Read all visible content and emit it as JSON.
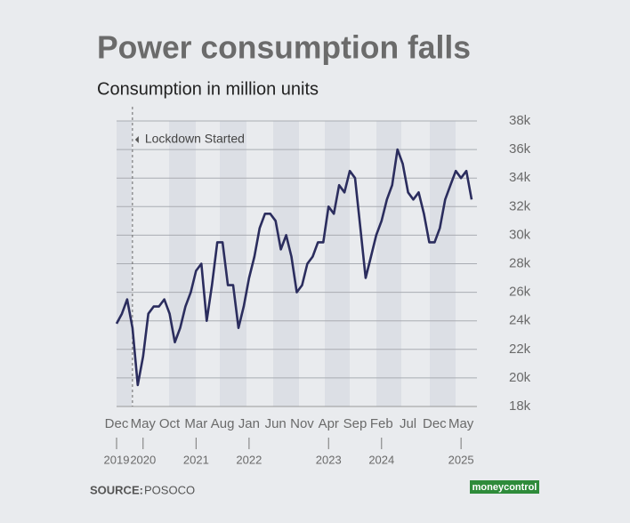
{
  "chart_data": {
    "type": "line",
    "title": "Power consumption falls",
    "subtitle": "Consumption in million units",
    "source_label": "SOURCE:",
    "source": "POSOCO",
    "brand": "moneycontrol",
    "annotation": {
      "x": "2020-03",
      "text": "Lockdown Started"
    },
    "x": [
      "2019-12",
      "2020-01",
      "2020-02",
      "2020-03",
      "2020-04",
      "2020-05",
      "2020-06",
      "2020-07",
      "2020-08",
      "2020-09",
      "2020-10",
      "2020-11",
      "2020-12",
      "2021-01",
      "2021-02",
      "2021-03",
      "2021-04",
      "2021-05",
      "2021-06",
      "2021-07",
      "2021-08",
      "2021-09",
      "2021-10",
      "2021-11",
      "2021-12",
      "2022-01",
      "2022-02",
      "2022-03",
      "2022-04",
      "2022-05",
      "2022-06",
      "2022-07",
      "2022-08",
      "2022-09",
      "2022-10",
      "2022-11",
      "2022-12",
      "2023-01",
      "2023-02",
      "2023-03",
      "2023-04",
      "2023-05",
      "2023-06",
      "2023-07",
      "2023-08",
      "2023-09",
      "2023-10",
      "2023-11",
      "2023-12",
      "2024-01",
      "2024-02",
      "2024-03",
      "2024-04",
      "2024-05",
      "2024-06",
      "2024-07",
      "2024-08",
      "2024-09",
      "2024-10",
      "2024-11",
      "2024-12",
      "2025-01",
      "2025-02",
      "2025-03",
      "2025-04",
      "2025-05",
      "2025-06",
      "2025-07"
    ],
    "series": [
      {
        "name": "Consumption",
        "color": "#2b2d5e",
        "values": [
          23800,
          24500,
          25500,
          23500,
          19500,
          21500,
          24500,
          25000,
          25000,
          25500,
          24500,
          22500,
          23500,
          25000,
          26000,
          27500,
          28000,
          24000,
          26500,
          29500,
          29500,
          26500,
          26500,
          23500,
          25000,
          27000,
          28500,
          30500,
          31500,
          31500,
          31000,
          29000,
          30000,
          28500,
          26000,
          26500,
          28000,
          28500,
          29500,
          29500,
          32000,
          31500,
          33500,
          33000,
          34500,
          34000,
          30500,
          27000,
          28500,
          30000,
          31000,
          32500,
          33500,
          36000,
          35000,
          33000,
          32500,
          33000,
          31500,
          29500,
          29500,
          30500,
          32500,
          33500,
          34500,
          34000,
          34500,
          32500
        ]
      }
    ],
    "xlim": [
      "2019-12",
      "2025-08"
    ],
    "xticks": [
      {
        "value": "2019-12",
        "label": "Dec"
      },
      {
        "value": "2020-05",
        "label": "May"
      },
      {
        "value": "2020-10",
        "label": "Oct"
      },
      {
        "value": "2021-03",
        "label": "Mar"
      },
      {
        "value": "2021-08",
        "label": "Aug"
      },
      {
        "value": "2022-01",
        "label": "Jan"
      },
      {
        "value": "2022-06",
        "label": "Jun"
      },
      {
        "value": "2022-11",
        "label": "Nov"
      },
      {
        "value": "2023-04",
        "label": "Apr"
      },
      {
        "value": "2023-09",
        "label": "Sep"
      },
      {
        "value": "2024-02",
        "label": "Feb"
      },
      {
        "value": "2024-07",
        "label": "Jul"
      },
      {
        "value": "2024-12",
        "label": "Dec"
      },
      {
        "value": "2025-05",
        "label": "May"
      }
    ],
    "year_ticks": [
      {
        "value": "2019-12",
        "label": "2019"
      },
      {
        "value": "2020-05",
        "label": "2020"
      },
      {
        "value": "2021-03",
        "label": "2021"
      },
      {
        "value": "2022-01",
        "label": "2022"
      },
      {
        "value": "2023-04",
        "label": "2023"
      },
      {
        "value": "2024-02",
        "label": "2024"
      },
      {
        "value": "2025-05",
        "label": "2025"
      }
    ],
    "ylim": [
      18000,
      38000
    ],
    "yticks": [
      {
        "value": 18000,
        "label": "18k"
      },
      {
        "value": 20000,
        "label": "20k"
      },
      {
        "value": 22000,
        "label": "22k"
      },
      {
        "value": 24000,
        "label": "24k"
      },
      {
        "value": 26000,
        "label": "26k"
      },
      {
        "value": 28000,
        "label": "28k"
      },
      {
        "value": 30000,
        "label": "30k"
      },
      {
        "value": 32000,
        "label": "32k"
      },
      {
        "value": 34000,
        "label": "34k"
      },
      {
        "value": 36000,
        "label": "36k"
      },
      {
        "value": 38000,
        "label": "38k"
      }
    ],
    "grid": true
  }
}
